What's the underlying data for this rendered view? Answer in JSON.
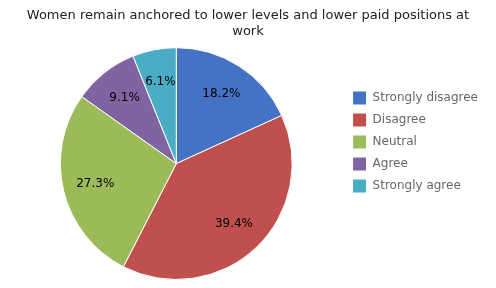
{
  "chart_data": {
    "type": "pie",
    "title": "Women remain anchored to lower levels and lower paid positions at\nwork",
    "categories": [
      "Strongly disagree",
      "Disagree",
      "Neutral",
      "Agree",
      "Strongly agree"
    ],
    "values": [
      18.2,
      39.4,
      27.3,
      9.1,
      6.1
    ],
    "value_labels": [
      "18.2%",
      "39.4%",
      "27.3%",
      "9.1%",
      "6.1%"
    ],
    "colors": [
      "#4472C4",
      "#C0504D",
      "#9BBB59",
      "#8064A2",
      "#4BACC6"
    ],
    "data_labels": true,
    "legend": "right"
  }
}
